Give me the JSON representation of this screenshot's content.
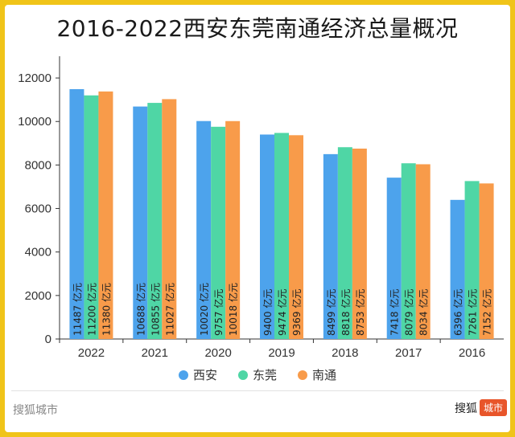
{
  "title": "2016-2022西安东莞南通经济总量概况",
  "colors": {
    "西安": "#4da3ec",
    "东莞": "#4fd6a5",
    "南通": "#f89b4a"
  },
  "chart_data": {
    "type": "bar",
    "categories": [
      "2022",
      "2021",
      "2020",
      "2019",
      "2018",
      "2017",
      "2016"
    ],
    "series": [
      {
        "name": "西安",
        "values": [
          11487,
          10688,
          10020,
          9400,
          8499,
          7418,
          6396
        ],
        "labels": [
          "11487 亿元",
          "10688 亿元",
          "10020 亿元",
          "9400 亿元",
          "8499 亿元",
          "7418 亿元",
          "6396 亿元"
        ]
      },
      {
        "name": "东莞",
        "values": [
          11200,
          10855,
          9757,
          9474,
          8818,
          8079,
          7261
        ],
        "labels": [
          "11200 亿元",
          "10855 亿元",
          "9757 亿元",
          "9474 亿元",
          "8818 亿元",
          "8079 亿元",
          "7261 亿元"
        ]
      },
      {
        "name": "南通",
        "values": [
          11380,
          11027,
          10018,
          9369,
          8753,
          8034,
          7152
        ],
        "labels": [
          "11380 亿元",
          "11027 亿元",
          "10018 亿元",
          "9369 亿元",
          "8753 亿元",
          "8034 亿元",
          "7152 亿元"
        ]
      }
    ],
    "yticks": [
      "0",
      "2000",
      "4000",
      "6000",
      "8000",
      "10000",
      "12000"
    ],
    "ylim": [
      0,
      13000
    ],
    "grid": false,
    "legend_position": "bottom"
  },
  "legend": [
    {
      "name": "西安",
      "color": "#4da3ec"
    },
    {
      "name": "东莞",
      "color": "#4fd6a5"
    },
    {
      "name": "南通",
      "color": "#f89b4a"
    }
  ],
  "footer": {
    "left": "搜狐城市",
    "right_brand": "搜狐",
    "right_badge": "城市"
  }
}
